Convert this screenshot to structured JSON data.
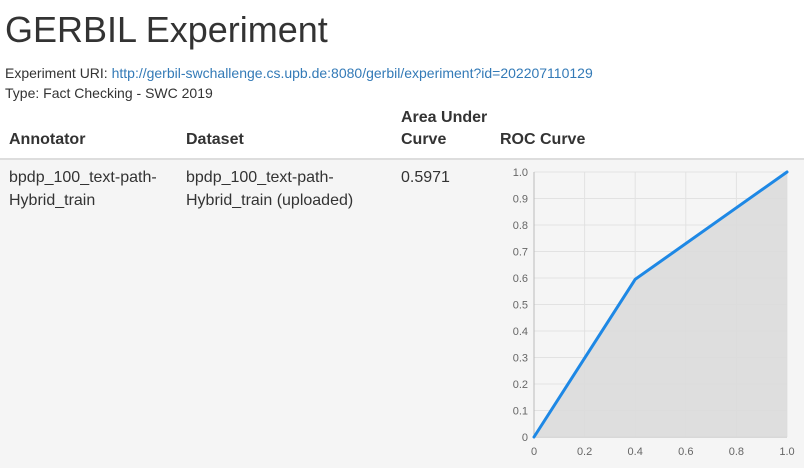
{
  "page": {
    "title": "GERBIL Experiment",
    "uri_label": "Experiment URI:",
    "uri": "http://gerbil-swchallenge.cs.upb.de:8080/gerbil/experiment?id=202207110129",
    "type_label": "Type:",
    "type_value": "Fact Checking - SWC 2019"
  },
  "table": {
    "headers": {
      "annotator": "Annotator",
      "dataset": "Dataset",
      "auc_line1": "Area Under",
      "auc_line2": "Curve",
      "roc": "ROC Curve"
    },
    "row": {
      "annotator_line1": "bpdp_100_text-path-",
      "annotator_line2": "Hybrid_train",
      "dataset_line1": "bpdp_100_text-path-",
      "dataset_line2": "Hybrid_train (uploaded)",
      "auc": "0.5971"
    }
  },
  "colors": {
    "link": "#337ab7",
    "line": "#1e88e5",
    "fill": "#dcdcdc",
    "row_bg": "#f5f5f5"
  },
  "chart_data": {
    "type": "area",
    "x": [
      0,
      0.4,
      1.0
    ],
    "series": [
      {
        "values": [
          0,
          0.595,
          1.0
        ]
      }
    ],
    "xlim": [
      0,
      1
    ],
    "ylim": [
      0,
      1
    ],
    "x_ticks": [
      "0",
      "0.2",
      "0.4",
      "0.6",
      "0.8",
      "1.0"
    ],
    "y_ticks": [
      "0",
      "0.1",
      "0.2",
      "0.3",
      "0.4",
      "0.5",
      "0.6",
      "0.7",
      "0.8",
      "0.9",
      "1.0"
    ],
    "grid": true
  }
}
